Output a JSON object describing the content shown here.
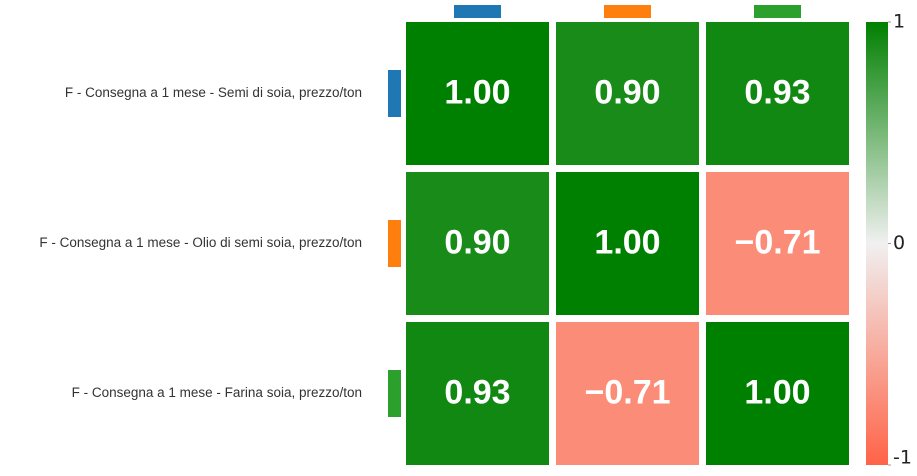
{
  "chart_data": {
    "type": "heatmap",
    "rows": [
      "F - Consegna a 1 mese - Semi di soia, prezzo/ton",
      "F - Consegna a 1 mese - Olio di semi soia, prezzo/ton",
      "F - Consegna a 1 mese - Farina soia, prezzo/ton"
    ],
    "marker_colors": [
      "#1f77b4",
      "#ff7f0e",
      "#2ca02c"
    ],
    "values": [
      [
        1,
        0.9,
        0.93
      ],
      [
        0.9,
        1,
        -0.71
      ],
      [
        0.93,
        -0.71,
        1
      ]
    ],
    "value_labels": [
      [
        "1.00",
        "0.90",
        "0.93"
      ],
      [
        "0.90",
        "1.00",
        "−0.71"
      ],
      [
        "0.93",
        "−0.71",
        "1.00"
      ]
    ],
    "colorscale": [
      "#ff6347",
      "#f0f0f0",
      "#008000"
    ],
    "zlim": [
      -1,
      1
    ],
    "zticks": [
      -1,
      0,
      1
    ]
  }
}
